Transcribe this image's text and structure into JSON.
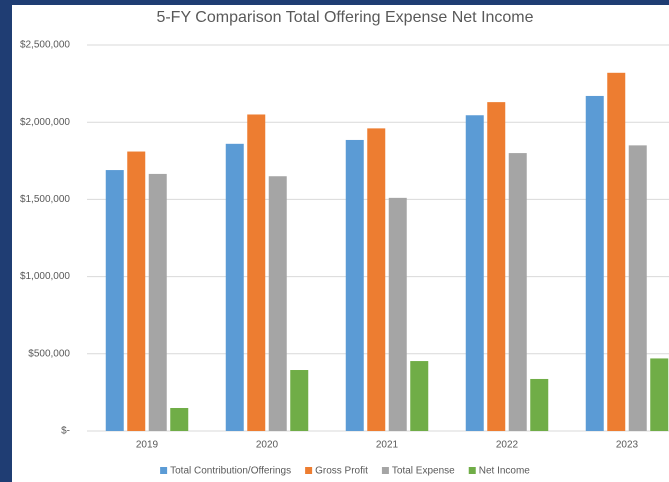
{
  "chart_data": {
    "type": "bar",
    "title": "5-FY Comparison Total Offering Expense Net Income",
    "categories": [
      "2019",
      "2020",
      "2021",
      "2022",
      "2023"
    ],
    "series": [
      {
        "name": "Total Contribution/Offerings",
        "color": "#5b9bd5",
        "values": [
          1690000,
          1860000,
          1885000,
          2045000,
          2170000
        ]
      },
      {
        "name": "Gross Profit",
        "color": "#ed7d31",
        "values": [
          1810000,
          2050000,
          1960000,
          2130000,
          2320000
        ]
      },
      {
        "name": "Total Expense",
        "color": "#a5a5a5",
        "values": [
          1665000,
          1650000,
          1510000,
          1800000,
          1850000
        ]
      },
      {
        "name": "Net Income",
        "color": "#70ad47",
        "values": [
          149000,
          395000,
          453000,
          337000,
          470000
        ]
      }
    ],
    "ylim": [
      0,
      2500000
    ],
    "yticks": [
      {
        "value": 0,
        "label": "$-"
      },
      {
        "value": 500000,
        "label": "$500,000"
      },
      {
        "value": 1000000,
        "label": "$1,000,000"
      },
      {
        "value": 1500000,
        "label": "$1,500,000"
      },
      {
        "value": 2000000,
        "label": "$2,000,000"
      },
      {
        "value": 2500000,
        "label": "$2,500,000"
      }
    ],
    "grid": true,
    "legend": "bottom"
  }
}
